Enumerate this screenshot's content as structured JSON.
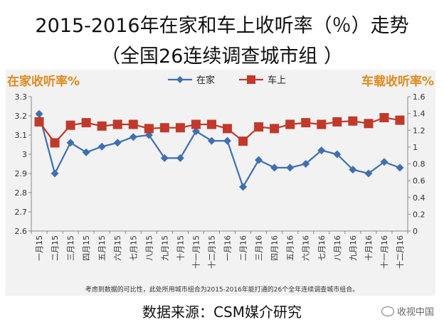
{
  "title_line1": "2015-2016年在家和车上收听率（％）走势",
  "title_line2": "（全国26连续调查城市组 ）",
  "footnote": "考虑到数据的可比性，此处所用城市组合为2015-2016年能打通的26个全年连续调查城市组合。",
  "source": "数据来源：CSM媒介研究",
  "watermark": "收视中国",
  "chart_data": {
    "type": "line",
    "left_axis_title": "在家收听率%",
    "right_axis_title": "车载收听率%",
    "categories": [
      "一月15",
      "二月15",
      "三月15",
      "四月15",
      "五月15",
      "六月15",
      "七月15",
      "八月15",
      "九月15",
      "十月15",
      "十一月15",
      "十二月15",
      "一月16",
      "二月16",
      "三月16",
      "四月16",
      "五月16",
      "六月16",
      "七月16",
      "八月16",
      "九月16",
      "十月16",
      "十一月16",
      "十二月16"
    ],
    "y_left": {
      "min": 2.6,
      "max": 3.3,
      "ticks": [
        "2.6",
        "2.7",
        "2.8",
        "2.9",
        "3",
        "3.1",
        "3.2",
        "3.3"
      ]
    },
    "y_right": {
      "min": 0,
      "max": 1.6,
      "ticks": [
        "0",
        "0.2",
        "0.4",
        "0.6",
        "0.8",
        "1",
        "1.2",
        "1.4",
        "1.6"
      ]
    },
    "series": [
      {
        "name": "在家",
        "axis": "left",
        "color": "#3f6fb0",
        "marker": "diamond",
        "values": [
          3.21,
          2.9,
          3.06,
          3.01,
          3.04,
          3.06,
          3.09,
          3.1,
          2.98,
          2.98,
          3.12,
          3.07,
          3.07,
          2.83,
          2.97,
          2.93,
          2.93,
          2.95,
          3.02,
          3.0,
          2.92,
          2.9,
          2.96,
          2.93
        ]
      },
      {
        "name": "车上",
        "axis": "right",
        "color": "#c0392b",
        "marker": "square",
        "values": [
          1.3,
          1.05,
          1.26,
          1.29,
          1.25,
          1.27,
          1.27,
          1.22,
          1.23,
          1.23,
          1.27,
          1.27,
          1.22,
          1.07,
          1.24,
          1.22,
          1.27,
          1.29,
          1.27,
          1.3,
          1.31,
          1.28,
          1.35,
          1.32
        ]
      }
    ]
  }
}
